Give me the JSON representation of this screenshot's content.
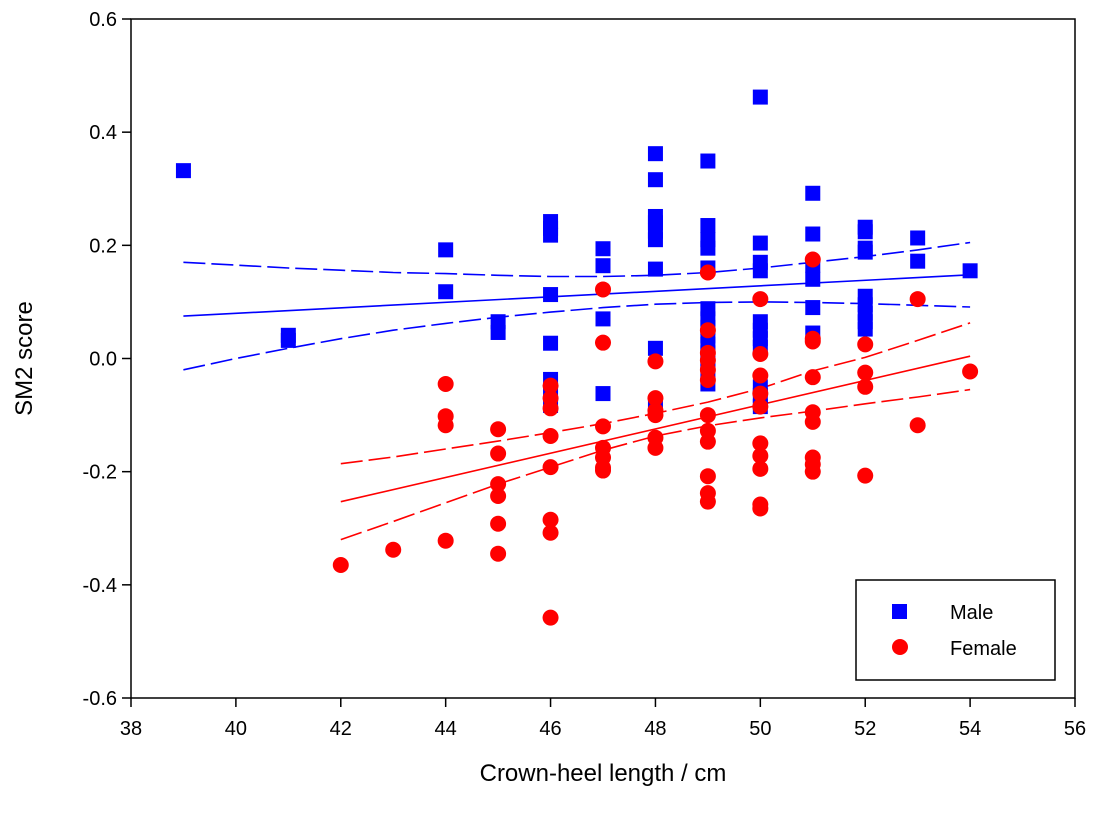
{
  "chart_data": {
    "type": "scatter",
    "title": "",
    "xlabel": "Crown-heel length / cm",
    "ylabel": "SM2 score",
    "xlim": [
      38,
      56
    ],
    "ylim": [
      -0.6,
      0.6
    ],
    "xticks": [
      38,
      40,
      42,
      44,
      46,
      48,
      50,
      52,
      54,
      56
    ],
    "yticks": [
      -0.6,
      -0.4,
      -0.2,
      0.0,
      0.2,
      0.4,
      0.6
    ],
    "xtick_labels": [
      "38",
      "40",
      "42",
      "44",
      "46",
      "48",
      "50",
      "52",
      "54",
      "56"
    ],
    "ytick_labels": [
      "-0.6",
      "-0.4",
      "-0.2",
      "0.0",
      "0.2",
      "0.4",
      "0.6"
    ],
    "grid": false,
    "legend_position": "bottom-right",
    "series": [
      {
        "name": "Male",
        "color": "#0000ff",
        "marker": "square",
        "points": [
          [
            39,
            0.332
          ],
          [
            41,
            0.041
          ],
          [
            41,
            0.032
          ],
          [
            44,
            0.192
          ],
          [
            44,
            0.118
          ],
          [
            45,
            0.065
          ],
          [
            45,
            0.046
          ],
          [
            46,
            0.242
          ],
          [
            46,
            0.23
          ],
          [
            46,
            0.218
          ],
          [
            46,
            0.113
          ],
          [
            46,
            0.027
          ],
          [
            46,
            -0.037
          ],
          [
            46,
            -0.062
          ],
          [
            46,
            -0.083
          ],
          [
            47,
            0.194
          ],
          [
            47,
            0.164
          ],
          [
            47,
            0.07
          ],
          [
            47,
            -0.062
          ],
          [
            48,
            0.362
          ],
          [
            48,
            0.316
          ],
          [
            48,
            0.251
          ],
          [
            48,
            0.24
          ],
          [
            48,
            0.225
          ],
          [
            48,
            0.21
          ],
          [
            48,
            0.158
          ],
          [
            48,
            0.018
          ],
          [
            48,
            -0.087
          ],
          [
            49,
            0.349
          ],
          [
            49,
            0.235
          ],
          [
            49,
            0.21
          ],
          [
            49,
            0.195
          ],
          [
            49,
            0.16
          ],
          [
            49,
            0.088
          ],
          [
            49,
            0.07
          ],
          [
            49,
            0.055
          ],
          [
            49,
            0.04
          ],
          [
            49,
            0.025
          ],
          [
            49,
            0.01
          ],
          [
            49,
            -0.005
          ],
          [
            49,
            -0.02
          ],
          [
            49,
            -0.045
          ],
          [
            50,
            0.462
          ],
          [
            50,
            0.204
          ],
          [
            50,
            0.17
          ],
          [
            50,
            0.155
          ],
          [
            50,
            0.065
          ],
          [
            50,
            0.05
          ],
          [
            50,
            0.035
          ],
          [
            50,
            0.02
          ],
          [
            50,
            -0.05
          ],
          [
            50,
            -0.065
          ],
          [
            50,
            -0.085
          ],
          [
            51,
            0.292
          ],
          [
            51,
            0.22
          ],
          [
            51,
            0.165
          ],
          [
            51,
            0.14
          ],
          [
            51,
            0.09
          ],
          [
            51,
            0.045
          ],
          [
            52,
            0.232
          ],
          [
            52,
            0.224
          ],
          [
            52,
            0.195
          ],
          [
            52,
            0.188
          ],
          [
            52,
            0.11
          ],
          [
            52,
            0.095
          ],
          [
            52,
            0.08
          ],
          [
            52,
            0.065
          ],
          [
            52,
            0.052
          ],
          [
            53,
            0.213
          ],
          [
            53,
            0.172
          ],
          [
            54,
            0.155
          ]
        ],
        "fit": {
          "x": [
            39,
            54
          ],
          "y": [
            0.075,
            0.148
          ]
        },
        "ci_upper": {
          "x": [
            39,
            40,
            41,
            42,
            43,
            44,
            45,
            46,
            47,
            48,
            49,
            50,
            51,
            52,
            53,
            54
          ],
          "y": [
            0.17,
            0.165,
            0.16,
            0.156,
            0.152,
            0.15,
            0.147,
            0.145,
            0.145,
            0.147,
            0.152,
            0.16,
            0.17,
            0.18,
            0.192,
            0.205
          ]
        },
        "ci_lower": {
          "x": [
            39,
            40,
            41,
            42,
            43,
            44,
            45,
            46,
            47,
            48,
            49,
            50,
            51,
            52,
            53,
            54
          ],
          "y": [
            -0.02,
            0.0,
            0.018,
            0.035,
            0.05,
            0.062,
            0.073,
            0.082,
            0.09,
            0.096,
            0.099,
            0.1,
            0.099,
            0.097,
            0.094,
            0.091
          ]
        }
      },
      {
        "name": "Female",
        "color": "#ff0000",
        "marker": "circle",
        "points": [
          [
            42,
            -0.365
          ],
          [
            43,
            -0.338
          ],
          [
            44,
            -0.045
          ],
          [
            44,
            -0.102
          ],
          [
            44,
            -0.118
          ],
          [
            44,
            -0.322
          ],
          [
            45,
            -0.125
          ],
          [
            45,
            -0.168
          ],
          [
            45,
            -0.222
          ],
          [
            45,
            -0.243
          ],
          [
            45,
            -0.292
          ],
          [
            45,
            -0.345
          ],
          [
            46,
            -0.048
          ],
          [
            46,
            -0.07
          ],
          [
            46,
            -0.088
          ],
          [
            46,
            -0.137
          ],
          [
            46,
            -0.192
          ],
          [
            46,
            -0.285
          ],
          [
            46,
            -0.308
          ],
          [
            46,
            -0.458
          ],
          [
            47,
            0.122
          ],
          [
            47,
            0.028
          ],
          [
            47,
            -0.12
          ],
          [
            47,
            -0.158
          ],
          [
            47,
            -0.175
          ],
          [
            47,
            -0.193
          ],
          [
            47,
            -0.198
          ],
          [
            48,
            -0.005
          ],
          [
            48,
            -0.07
          ],
          [
            48,
            -0.092
          ],
          [
            48,
            -0.1
          ],
          [
            48,
            -0.14
          ],
          [
            48,
            -0.158
          ],
          [
            49,
            0.152
          ],
          [
            49,
            0.05
          ],
          [
            49,
            0.01
          ],
          [
            49,
            -0.003
          ],
          [
            49,
            -0.02
          ],
          [
            49,
            -0.038
          ],
          [
            49,
            -0.1
          ],
          [
            49,
            -0.128
          ],
          [
            49,
            -0.147
          ],
          [
            49,
            -0.208
          ],
          [
            49,
            -0.238
          ],
          [
            49,
            -0.253
          ],
          [
            50,
            0.105
          ],
          [
            50,
            0.008
          ],
          [
            50,
            -0.03
          ],
          [
            50,
            -0.062
          ],
          [
            50,
            -0.085
          ],
          [
            50,
            -0.15
          ],
          [
            50,
            -0.172
          ],
          [
            50,
            -0.195
          ],
          [
            50,
            -0.258
          ],
          [
            50,
            -0.265
          ],
          [
            51,
            0.175
          ],
          [
            51,
            0.035
          ],
          [
            51,
            0.03
          ],
          [
            51,
            -0.033
          ],
          [
            51,
            -0.095
          ],
          [
            51,
            -0.112
          ],
          [
            51,
            -0.175
          ],
          [
            51,
            -0.187
          ],
          [
            51,
            -0.2
          ],
          [
            52,
            0.025
          ],
          [
            52,
            -0.025
          ],
          [
            52,
            -0.05
          ],
          [
            52,
            -0.207
          ],
          [
            53,
            0.105
          ],
          [
            53,
            -0.118
          ],
          [
            54,
            -0.023
          ]
        ],
        "fit": {
          "x": [
            42,
            54
          ],
          "y": [
            -0.253,
            0.004
          ]
        },
        "ci_upper": {
          "x": [
            42,
            43,
            44,
            45,
            46,
            47,
            48,
            49,
            50,
            51,
            52,
            53,
            54
          ],
          "y": [
            -0.186,
            -0.174,
            -0.16,
            -0.146,
            -0.131,
            -0.115,
            -0.097,
            -0.077,
            -0.053,
            -0.022,
            0.002,
            0.032,
            0.063
          ]
        },
        "ci_lower": {
          "x": [
            42,
            43,
            44,
            45,
            46,
            47,
            48,
            49,
            50,
            51,
            52,
            53,
            54
          ],
          "y": [
            -0.32,
            -0.288,
            -0.255,
            -0.222,
            -0.192,
            -0.162,
            -0.137,
            -0.119,
            -0.105,
            -0.093,
            -0.08,
            -0.068,
            -0.055
          ]
        }
      }
    ]
  }
}
